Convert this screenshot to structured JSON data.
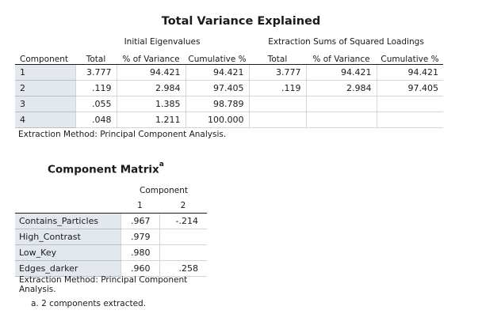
{
  "variance_table": {
    "title": "Total Variance Explained",
    "group_headers": [
      "Initial Eigenvalues",
      "Extraction Sums of Squared Loadings"
    ],
    "columns": [
      "Component",
      "Total",
      "% of Variance",
      "Cumulative %",
      "Total",
      "% of Variance",
      "Cumulative %"
    ],
    "rows": [
      {
        "component": "1",
        "cells": [
          "3.777",
          "94.421",
          "94.421",
          "3.777",
          "94.421",
          "94.421"
        ]
      },
      {
        "component": "2",
        "cells": [
          ".119",
          "2.984",
          "97.405",
          ".119",
          "2.984",
          "97.405"
        ]
      },
      {
        "component": "3",
        "cells": [
          ".055",
          "1.385",
          "98.789",
          "",
          "",
          ""
        ]
      },
      {
        "component": "4",
        "cells": [
          ".048",
          "1.211",
          "100.000",
          "",
          "",
          ""
        ]
      }
    ],
    "footnote": "Extraction Method: Principal Component Analysis."
  },
  "component_matrix": {
    "title": "Component Matrix",
    "title_sup": "a",
    "group_header": "Component",
    "columns": [
      "1",
      "2"
    ],
    "rows": [
      {
        "label": "Contains_Particles",
        "cells": [
          ".967",
          "-.214"
        ]
      },
      {
        "label": "High_Contrast",
        "cells": [
          ".979",
          ""
        ]
      },
      {
        "label": "Low_Key",
        "cells": [
          ".980",
          ""
        ]
      },
      {
        "label": "Edges_darker",
        "cells": [
          ".960",
          ".258"
        ]
      }
    ],
    "footnote": "Extraction Method: Principal Component Analysis.",
    "note": "a. 2 components extracted."
  }
}
